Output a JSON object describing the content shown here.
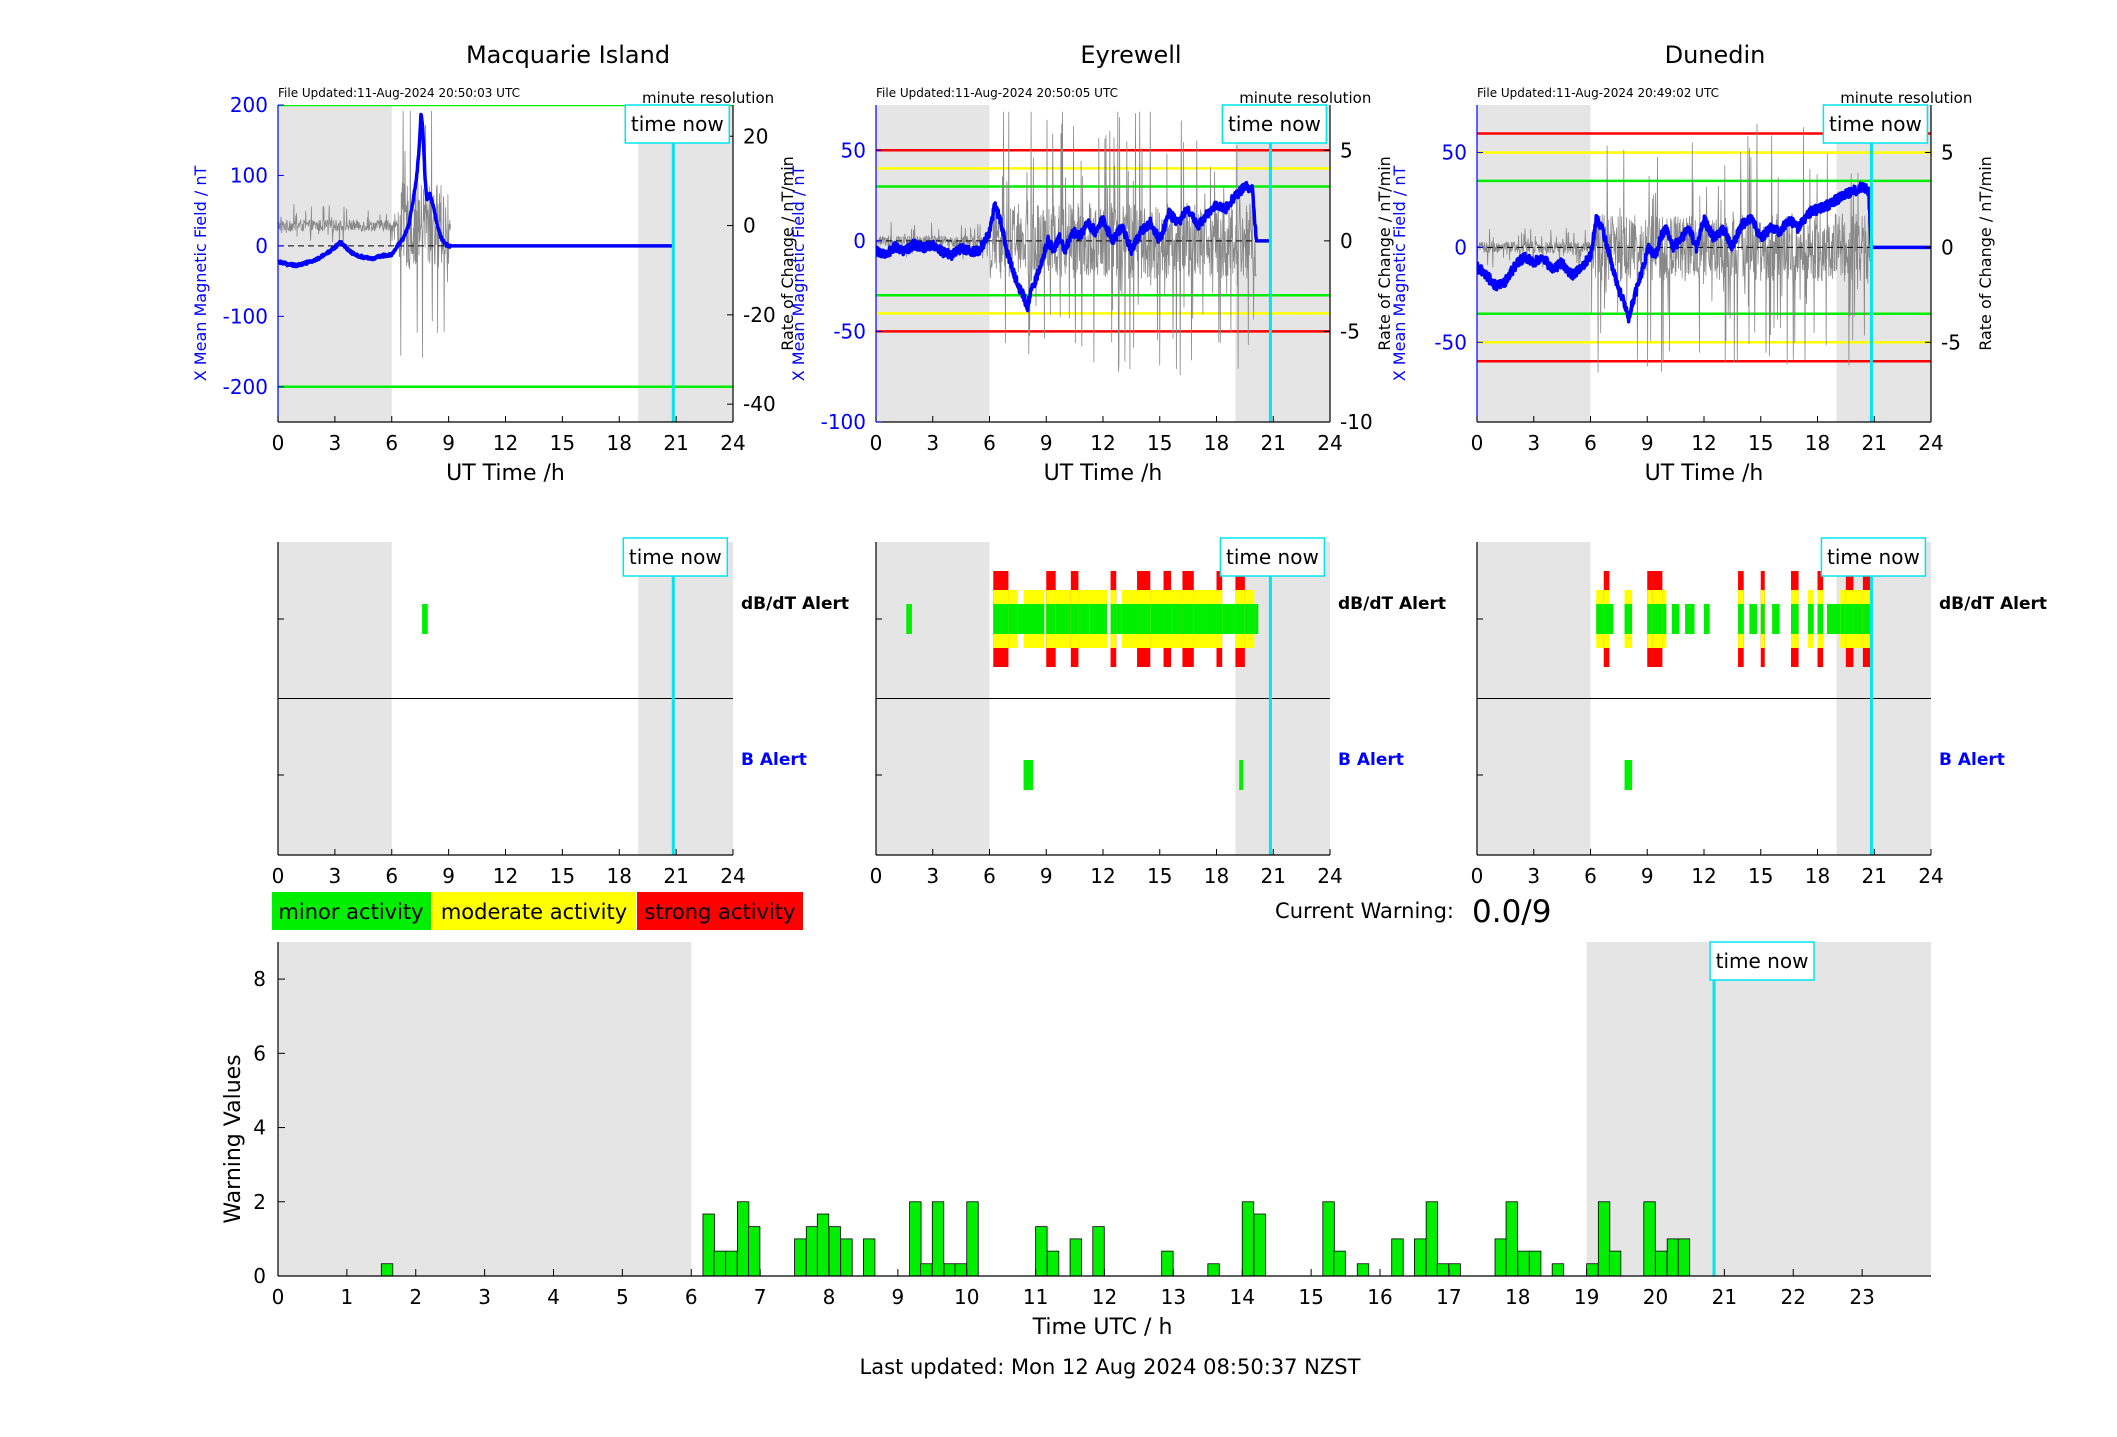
{
  "colors": {
    "blue": "#0000ff",
    "cyan": "#00e5ee",
    "green": "#00ee00",
    "yellow": "#ffff00",
    "red": "#ff0000",
    "grey_band": "#e5e5e5",
    "noise": "#888888"
  },
  "legend": {
    "minor": "minor activity",
    "moderate": "moderate activity",
    "strong": "strong activity"
  },
  "current_warning": {
    "label": "Current Warning:",
    "value": "0.0/9"
  },
  "footer": "Last updated: Mon 12 Aug 2024 08:50:37 NZST",
  "time_now_label": "time now",
  "stations": [
    {
      "name": "Macquarie Island",
      "file_updated": "File Updated:11-Aug-2024 20:50:03 UTC",
      "resolution": "minute resolution",
      "ylabel_left": "X Mean Magnetic Field / nT",
      "ylabel_right": "Rate of Change / nT/min",
      "xlabel": "UT Time /h"
    },
    {
      "name": "Eyrewell",
      "file_updated": "File Updated:11-Aug-2024 20:50:05 UTC",
      "resolution": "minute resolution",
      "ylabel_left": "X Mean Magnetic Field / nT",
      "ylabel_right": "Rate of Change / nT/min",
      "xlabel": "UT Time /h"
    },
    {
      "name": "Dunedin",
      "file_updated": "File Updated:11-Aug-2024 20:49:02 UTC",
      "resolution": "minute resolution",
      "ylabel_left": "X Mean Magnetic Field / nT",
      "ylabel_right": "Rate of Change / nT/min",
      "xlabel": "UT Time /h"
    }
  ],
  "alert_labels": {
    "dbdt": "dB/dT Alert",
    "b": "B Alert"
  },
  "chart_data": [
    {
      "type": "line",
      "station": "Macquarie Island",
      "xlim": [
        0,
        24
      ],
      "xticks": [
        0,
        3,
        6,
        9,
        12,
        15,
        18,
        21,
        24
      ],
      "ylim_left": [
        -250,
        200
      ],
      "yticks_left": [
        -200,
        -100,
        0,
        100,
        200
      ],
      "ylim_right": [
        -44,
        27
      ],
      "yticks_right": [
        -40,
        -20,
        0,
        20
      ],
      "night_bands": [
        [
          0,
          6
        ],
        [
          19,
          24
        ]
      ],
      "time_now": 20.85,
      "threshold_lines": [
        {
          "color": "green",
          "values": [
            200,
            -200
          ]
        }
      ],
      "field_series": {
        "x": [
          0,
          0.5,
          1,
          1.5,
          2,
          2.5,
          3,
          3.3,
          3.7,
          4,
          4.5,
          5,
          5.5,
          6,
          6.3,
          6.6,
          6.9,
          7.1,
          7.3,
          7.45,
          7.55,
          7.65,
          7.75,
          7.85,
          8.0,
          8.2,
          8.4,
          8.6,
          8.8,
          9.0,
          9.5,
          20.85
        ],
        "y": [
          -22,
          -26,
          -28,
          -24,
          -20,
          -12,
          -2,
          5,
          -5,
          -12,
          -16,
          -18,
          -14,
          -12,
          0,
          10,
          30,
          60,
          95,
          140,
          190,
          160,
          100,
          65,
          75,
          55,
          30,
          12,
          3,
          0,
          0,
          0
        ]
      },
      "rate_noise": {
        "start": 0,
        "end": 9.1,
        "baseline": 0,
        "quiet_amp": 2.2,
        "storm_window": [
          6.3,
          9.0
        ],
        "storm_amp": 16
      }
    },
    {
      "type": "line",
      "station": "Eyrewell",
      "xlim": [
        0,
        24
      ],
      "xticks": [
        0,
        3,
        6,
        9,
        12,
        15,
        18,
        21,
        24
      ],
      "ylim_left": [
        -100,
        75
      ],
      "yticks_left": [
        -100,
        -50,
        0,
        50
      ],
      "ylim_right": [
        -10,
        7.5
      ],
      "yticks_right": [
        -10,
        -5,
        0,
        5
      ],
      "night_bands": [
        [
          0,
          6
        ],
        [
          19,
          24
        ]
      ],
      "time_now": 20.85,
      "threshold_lines": [
        {
          "color": "red",
          "values": [
            50,
            -50
          ]
        },
        {
          "color": "yellow",
          "values": [
            40,
            -40
          ]
        },
        {
          "color": "green",
          "values": [
            30,
            -30
          ]
        }
      ],
      "field_series": {
        "x": [
          0,
          0.5,
          1,
          1.5,
          2,
          2.5,
          3,
          3.5,
          4,
          4.5,
          5,
          5.5,
          6,
          6.3,
          6.6,
          6.9,
          7.2,
          7.5,
          7.8,
          8.0,
          8.2,
          8.5,
          8.8,
          9.1,
          9.4,
          9.7,
          10,
          10.4,
          10.8,
          11.2,
          11.6,
          12,
          12.5,
          13,
          13.5,
          14,
          14.5,
          15,
          15.5,
          16,
          16.5,
          17,
          17.5,
          18,
          18.5,
          19,
          19.3,
          19.6,
          19.9,
          20.1,
          20.85
        ],
        "y": [
          -5,
          -8,
          -3,
          -6,
          -2,
          -4,
          -2,
          -6,
          -8,
          -4,
          -6,
          -5,
          5,
          20,
          10,
          -5,
          -15,
          -25,
          -30,
          -37,
          -28,
          -20,
          -10,
          0,
          -5,
          2,
          -5,
          5,
          3,
          10,
          5,
          12,
          0,
          8,
          -5,
          5,
          10,
          0,
          15,
          10,
          18,
          8,
          15,
          20,
          18,
          25,
          28,
          30,
          28,
          0,
          0
        ]
      },
      "rate_noise": {
        "start": 0,
        "end": 20.1,
        "baseline": 0,
        "quiet_amp": 0.5,
        "storm_window": [
          6.0,
          20.1
        ],
        "storm_amp": 3.5
      }
    },
    {
      "type": "line",
      "station": "Dunedin",
      "xlim": [
        0,
        24
      ],
      "xticks": [
        0,
        3,
        6,
        9,
        12,
        15,
        18,
        21,
        24
      ],
      "ylim_left": [
        -92,
        75
      ],
      "yticks_left": [
        -50,
        0,
        50
      ],
      "ylim_right": [
        -9.2,
        7.5
      ],
      "yticks_right": [
        -5,
        0,
        5
      ],
      "night_bands": [
        [
          0,
          6
        ],
        [
          19,
          24
        ]
      ],
      "time_now": 20.85,
      "threshold_lines": [
        {
          "color": "red",
          "values": [
            60,
            -60
          ]
        },
        {
          "color": "yellow",
          "values": [
            50,
            -50
          ]
        },
        {
          "color": "green",
          "values": [
            35,
            -35
          ]
        }
      ],
      "field_series": {
        "x": [
          0,
          0.5,
          1,
          1.5,
          2,
          2.5,
          3,
          3.5,
          4,
          4.5,
          5,
          5.5,
          6,
          6.3,
          6.6,
          6.9,
          7.2,
          7.5,
          7.8,
          8.0,
          8.2,
          8.5,
          8.8,
          9.1,
          9.4,
          9.7,
          10,
          10.4,
          10.8,
          11.2,
          11.6,
          12,
          12.5,
          13,
          13.5,
          14,
          14.5,
          15,
          15.5,
          16,
          16.5,
          17,
          17.5,
          18,
          18.5,
          19,
          19.5,
          20,
          20.4,
          20.7,
          20.85,
          24
        ],
        "y": [
          -10,
          -15,
          -20,
          -18,
          -10,
          -5,
          -8,
          -5,
          -12,
          -8,
          -15,
          -10,
          -5,
          15,
          10,
          0,
          -12,
          -22,
          -30,
          -38,
          -30,
          -20,
          -10,
          0,
          -5,
          5,
          10,
          0,
          5,
          10,
          0,
          15,
          5,
          10,
          0,
          12,
          15,
          5,
          10,
          8,
          15,
          10,
          18,
          20,
          22,
          25,
          28,
          30,
          32,
          30,
          0,
          0
        ]
      },
      "rate_noise": {
        "start": 0,
        "end": 20.8,
        "baseline": 0,
        "quiet_amp": 0.5,
        "storm_window": [
          6.0,
          20.8
        ],
        "storm_amp": 3.0
      }
    },
    {
      "type": "alert-strip",
      "station": "Macquarie Island",
      "xlim": [
        0,
        24
      ],
      "xticks": [
        0,
        3,
        6,
        9,
        12,
        15,
        18,
        21,
        24
      ],
      "night_bands": [
        [
          0,
          6
        ],
        [
          19,
          24
        ]
      ],
      "time_now": 20.85,
      "dbdt_bars": [
        [
          7.6,
          7.9,
          1
        ]
      ],
      "b_bars": []
    },
    {
      "type": "alert-strip",
      "station": "Eyrewell",
      "xlim": [
        0,
        24
      ],
      "xticks": [
        0,
        3,
        6,
        9,
        12,
        15,
        18,
        21,
        24
      ],
      "night_bands": [
        [
          0,
          6
        ],
        [
          19,
          24
        ]
      ],
      "time_now": 20.85,
      "dbdt_bars": [
        [
          1.6,
          1.9,
          1
        ],
        [
          6.2,
          7.0,
          3
        ],
        [
          7.0,
          7.5,
          2
        ],
        [
          7.5,
          7.8,
          1
        ],
        [
          7.8,
          8.9,
          2
        ],
        [
          9.0,
          9.5,
          3
        ],
        [
          9.5,
          10.3,
          2
        ],
        [
          10.3,
          10.7,
          3
        ],
        [
          10.7,
          11.3,
          2
        ],
        [
          11.3,
          12.0,
          2
        ],
        [
          12.0,
          12.2,
          2
        ],
        [
          12.4,
          12.7,
          3
        ],
        [
          12.7,
          13.0,
          1
        ],
        [
          13.0,
          13.8,
          2
        ],
        [
          13.8,
          14.5,
          3
        ],
        [
          14.5,
          15.2,
          2
        ],
        [
          15.2,
          15.6,
          3
        ],
        [
          15.6,
          16.2,
          2
        ],
        [
          16.2,
          16.8,
          3
        ],
        [
          16.8,
          17.5,
          2
        ],
        [
          17.5,
          18.0,
          2
        ],
        [
          18.0,
          18.3,
          3
        ],
        [
          18.3,
          19.0,
          1
        ],
        [
          19.0,
          19.5,
          3
        ],
        [
          19.5,
          20.0,
          2
        ],
        [
          20.0,
          20.1,
          1
        ]
      ],
      "b_bars": [
        [
          7.8,
          8.3,
          1
        ],
        [
          19.2,
          19.4,
          1
        ]
      ]
    },
    {
      "type": "alert-strip",
      "station": "Dunedin",
      "xlim": [
        0,
        24
      ],
      "xticks": [
        0,
        3,
        6,
        9,
        12,
        15,
        18,
        21,
        24
      ],
      "night_bands": [
        [
          0,
          6
        ],
        [
          19,
          24
        ]
      ],
      "time_now": 20.85,
      "dbdt_bars": [
        [
          6.3,
          6.7,
          2
        ],
        [
          6.7,
          7.0,
          3
        ],
        [
          7.0,
          7.2,
          1
        ],
        [
          7.8,
          8.2,
          2
        ],
        [
          9.0,
          9.3,
          3
        ],
        [
          9.3,
          9.8,
          3
        ],
        [
          9.8,
          10.0,
          2
        ],
        [
          10.3,
          10.7,
          1
        ],
        [
          11.0,
          11.5,
          1
        ],
        [
          12.0,
          12.3,
          1
        ],
        [
          13.8,
          14.1,
          3
        ],
        [
          14.4,
          14.8,
          1
        ],
        [
          15.0,
          15.2,
          3
        ],
        [
          15.6,
          16.0,
          1
        ],
        [
          16.6,
          17.0,
          3
        ],
        [
          17.5,
          17.8,
          2
        ],
        [
          18.0,
          18.3,
          3
        ],
        [
          18.5,
          19.2,
          1
        ],
        [
          19.2,
          19.5,
          2
        ],
        [
          19.5,
          19.9,
          3
        ],
        [
          19.9,
          20.4,
          2
        ],
        [
          20.4,
          20.8,
          3
        ]
      ],
      "b_bars": [
        [
          7.8,
          8.2,
          1
        ]
      ]
    },
    {
      "type": "bar",
      "xlabel": "Time UTC / h",
      "ylabel": "Warning Values",
      "xlim": [
        0,
        24
      ],
      "ylim": [
        0,
        9
      ],
      "xticks": [
        0,
        1,
        2,
        3,
        4,
        5,
        6,
        7,
        8,
        9,
        10,
        11,
        12,
        13,
        14,
        15,
        16,
        17,
        18,
        19,
        20,
        21,
        22,
        23
      ],
      "yticks": [
        0,
        2,
        4,
        6,
        8
      ],
      "night_bands": [
        [
          0,
          6
        ],
        [
          19,
          24
        ]
      ],
      "time_now": 20.85,
      "bin_width": 0.1667,
      "bars": [
        [
          1.5,
          0.33
        ],
        [
          6.17,
          1.67
        ],
        [
          6.33,
          0.67
        ],
        [
          6.5,
          0.67
        ],
        [
          6.67,
          2
        ],
        [
          6.83,
          1.33
        ],
        [
          7.5,
          1
        ],
        [
          7.67,
          1.33
        ],
        [
          7.83,
          1.67
        ],
        [
          8.0,
          1.33
        ],
        [
          8.17,
          1
        ],
        [
          8.5,
          1
        ],
        [
          9.17,
          2
        ],
        [
          9.33,
          0.33
        ],
        [
          9.5,
          2
        ],
        [
          9.67,
          0.33
        ],
        [
          9.83,
          0.33
        ],
        [
          10.0,
          2
        ],
        [
          11.0,
          1.33
        ],
        [
          11.17,
          0.67
        ],
        [
          11.5,
          1
        ],
        [
          11.83,
          1.33
        ],
        [
          12.83,
          0.67
        ],
        [
          13.5,
          0.33
        ],
        [
          14.0,
          2
        ],
        [
          14.17,
          1.67
        ],
        [
          15.17,
          2
        ],
        [
          15.33,
          0.67
        ],
        [
          15.67,
          0.33
        ],
        [
          16.17,
          1
        ],
        [
          16.5,
          1
        ],
        [
          16.67,
          2
        ],
        [
          16.83,
          0.33
        ],
        [
          17.0,
          0.33
        ],
        [
          17.67,
          1
        ],
        [
          17.83,
          2
        ],
        [
          18.0,
          0.67
        ],
        [
          18.17,
          0.67
        ],
        [
          18.5,
          0.33
        ],
        [
          19.0,
          0.33
        ],
        [
          19.17,
          2
        ],
        [
          19.33,
          0.67
        ],
        [
          19.83,
          2
        ],
        [
          20.0,
          0.67
        ],
        [
          20.17,
          1
        ],
        [
          20.33,
          1
        ]
      ]
    }
  ]
}
